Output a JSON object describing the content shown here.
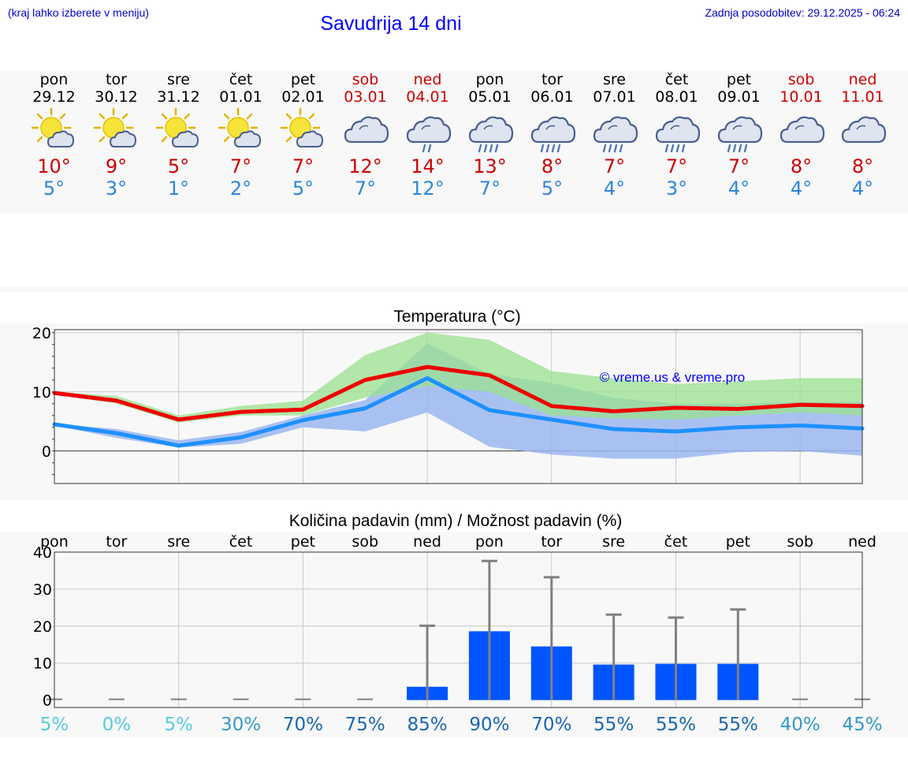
{
  "header": {
    "hint": "(kraj lahko izberete v meniju)",
    "title": "Savudrija 14 dni",
    "updated": "Zadnja posodobitev: 29.12.2025 - 06:24"
  },
  "days": [
    {
      "name": "pon",
      "date": "29.12",
      "icon": "sun-cloud-icon",
      "tmax": "10°",
      "tmin": "5°",
      "weekend": false
    },
    {
      "name": "tor",
      "date": "30.12",
      "icon": "sun-cloud-icon",
      "tmax": "9°",
      "tmin": "3°",
      "weekend": false
    },
    {
      "name": "sre",
      "date": "31.12",
      "icon": "sun-cloud-icon",
      "tmax": "5°",
      "tmin": "1°",
      "weekend": false
    },
    {
      "name": "čet",
      "date": "01.01",
      "icon": "sun-cloud-icon",
      "tmax": "7°",
      "tmin": "2°",
      "weekend": false
    },
    {
      "name": "pet",
      "date": "02.01",
      "icon": "sun-cloud-icon",
      "tmax": "7°",
      "tmin": "5°",
      "weekend": false
    },
    {
      "name": "sob",
      "date": "03.01",
      "icon": "cloud-icon",
      "tmax": "12°",
      "tmin": "7°",
      "weekend": true
    },
    {
      "name": "ned",
      "date": "04.01",
      "icon": "cloud-light-rain-icon",
      "tmax": "14°",
      "tmin": "12°",
      "weekend": true
    },
    {
      "name": "pon",
      "date": "05.01",
      "icon": "cloud-rain-icon",
      "tmax": "13°",
      "tmin": "7°",
      "weekend": false
    },
    {
      "name": "tor",
      "date": "06.01",
      "icon": "cloud-rain-icon",
      "tmax": "8°",
      "tmin": "5°",
      "weekend": false
    },
    {
      "name": "sre",
      "date": "07.01",
      "icon": "cloud-rain-icon",
      "tmax": "7°",
      "tmin": "4°",
      "weekend": false
    },
    {
      "name": "čet",
      "date": "08.01",
      "icon": "cloud-rain-icon",
      "tmax": "7°",
      "tmin": "3°",
      "weekend": false
    },
    {
      "name": "pet",
      "date": "09.01",
      "icon": "cloud-rain-icon",
      "tmax": "7°",
      "tmin": "4°",
      "weekend": false
    },
    {
      "name": "sob",
      "date": "10.01",
      "icon": "cloud-icon",
      "tmax": "8°",
      "tmin": "4°",
      "weekend": true
    },
    {
      "name": "ned",
      "date": "11.01",
      "icon": "cloud-icon",
      "tmax": "8°",
      "tmin": "4°",
      "weekend": true
    }
  ],
  "colors": {
    "max_line": "#ee0000",
    "min_line": "#1e90ff",
    "max_band": "#99e28e",
    "min_band": "#9bb7f0",
    "overlap_band": "#7ec6a8",
    "bar": "#0055ff",
    "whisker": "#808080",
    "weekend_text": "#cc0000",
    "title_text": "#0000ff"
  },
  "chart_data": [
    {
      "type": "line",
      "title": "Temperatura (°C)",
      "credit": "© vreme.us & vreme.pro",
      "x": [
        0,
        1,
        2,
        3,
        4,
        5,
        6,
        7,
        8,
        9,
        10,
        11,
        12,
        13
      ],
      "ylim": [
        -5.5,
        20.5
      ],
      "yticks": [
        0,
        10,
        20
      ],
      "series": [
        {
          "name": "max",
          "values": [
            9.8,
            8.5,
            5.3,
            6.6,
            7.0,
            12.0,
            14.2,
            12.8,
            7.6,
            6.7,
            7.3,
            7.1,
            7.8,
            7.6
          ]
        },
        {
          "name": "min",
          "values": [
            4.5,
            3.0,
            0.9,
            2.3,
            5.2,
            7.2,
            12.3,
            6.9,
            5.3,
            3.7,
            3.3,
            4.0,
            4.3,
            3.8
          ]
        }
      ],
      "max_band": {
        "low": [
          9.5,
          8.0,
          4.8,
          6.0,
          6.0,
          9.0,
          11.0,
          10.0,
          6.0,
          5.5,
          5.3,
          6.0,
          6.5,
          6.0
        ],
        "high": [
          10.0,
          9.3,
          6.0,
          7.6,
          8.5,
          16.2,
          20.0,
          18.8,
          13.5,
          12.3,
          11.3,
          11.8,
          12.3,
          12.3
        ]
      },
      "min_band": {
        "low": [
          4.3,
          2.2,
          0.6,
          1.2,
          4.0,
          3.3,
          6.5,
          0.7,
          -0.6,
          -1.3,
          -1.3,
          -0.2,
          0.0,
          -0.8
        ],
        "high": [
          4.6,
          3.7,
          1.8,
          3.2,
          6.0,
          8.6,
          18.2,
          13.0,
          11.5,
          9.0,
          8.0,
          8.0,
          8.3,
          8.3
        ]
      }
    },
    {
      "type": "bar",
      "title": "Količina padavin (mm) / Možnost padavin (%)",
      "categories": [
        "pon",
        "tor",
        "sre",
        "čet",
        "pet",
        "sob",
        "ned",
        "pon",
        "tor",
        "sre",
        "čet",
        "pet",
        "sob",
        "ned"
      ],
      "values": [
        0,
        0,
        0,
        0,
        0,
        0,
        3.6,
        18.6,
        14.5,
        9.6,
        9.8,
        9.8,
        0,
        0
      ],
      "whisker_high": [
        0,
        0,
        0,
        0,
        0,
        0,
        20.1,
        37.6,
        33.2,
        23.1,
        22.3,
        24.5,
        0,
        0
      ],
      "probability": [
        "5%",
        "0%",
        "5%",
        "30%",
        "70%",
        "75%",
        "85%",
        "90%",
        "70%",
        "55%",
        "55%",
        "55%",
        "40%",
        "45%"
      ],
      "probability_colors": [
        "#55ccdd",
        "#55ccdd",
        "#55ccdd",
        "#3399cc",
        "#1a66b3",
        "#1a66b3",
        "#1a66b3",
        "#1a66b3",
        "#1a66b3",
        "#1a66b3",
        "#1a66b3",
        "#1a66b3",
        "#3399cc",
        "#3399cc"
      ],
      "ylim": [
        -2,
        40
      ],
      "yticks": [
        0,
        10,
        20,
        30,
        40
      ]
    }
  ]
}
